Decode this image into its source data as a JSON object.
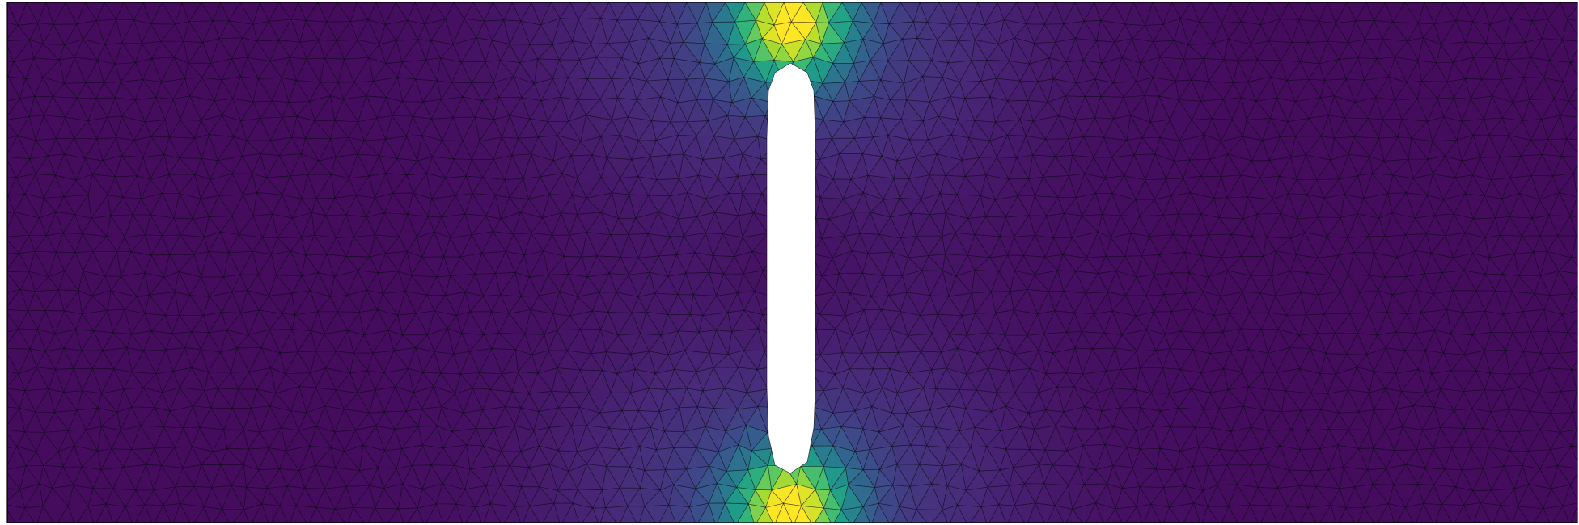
{
  "plot": {
    "colormap": "viridis",
    "colors": {
      "background": "#ffffff",
      "mesh_edge": "#0c0c14",
      "border": "#000000",
      "hole_fill": "#ffffff",
      "viridis_stops": [
        "#440154",
        "#482878",
        "#3e4a89",
        "#31688e",
        "#26828e",
        "#1f9e89",
        "#35b779",
        "#6ece58",
        "#b5de2b",
        "#fde725"
      ]
    },
    "field": {
      "description_visible": false,
      "min_level": 0.0,
      "max_level": 1.0,
      "hotspots": [
        "top-of-slot",
        "bottom-of-slot"
      ],
      "peak_level": 0.86,
      "far_field_level": 0.03,
      "slot_side_level": 0.0
    },
    "mesh": {
      "type": "triangulated",
      "edges_visible": true
    },
    "hole": {
      "shape": "elongated-vertical-slot"
    }
  }
}
